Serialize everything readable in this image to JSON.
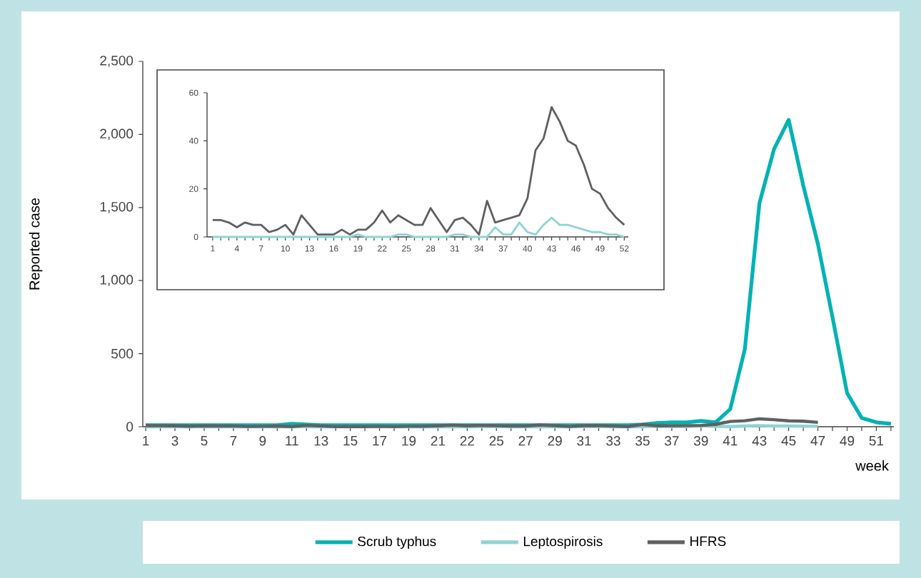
{
  "chart_data": [
    {
      "type": "line",
      "ylabel": "Reported case",
      "xlabel": "week",
      "legend": "bottom",
      "categories": [
        "1",
        null,
        "3",
        null,
        "5",
        null,
        "7",
        null,
        "9",
        null,
        "11",
        null,
        "13",
        null,
        "15",
        null,
        "17",
        null,
        "19",
        null,
        "21",
        null,
        "22",
        null,
        "25",
        null,
        "27",
        null,
        "29",
        null,
        "31",
        null,
        "33",
        null,
        "35",
        null,
        "37",
        null,
        "39",
        null,
        "41",
        null,
        "43",
        null,
        "45",
        null,
        "47",
        null,
        "49",
        null,
        "51",
        null
      ],
      "ylim": [
        0,
        2500
      ],
      "yticks": [
        0,
        500,
        {
          "value": 1000,
          "label": "1,000"
        },
        {
          "value": 1500,
          "label": "1,500"
        },
        {
          "value": 2000,
          "label": "2,000"
        },
        {
          "value": 2500,
          "label": "2,500"
        }
      ],
      "series": [
        {
          "name": "Scrub typhus",
          "color": "#00b2b4",
          "values": [
            10,
            10,
            10,
            10,
            10,
            10,
            10,
            10,
            10,
            10,
            20,
            15,
            10,
            10,
            10,
            10,
            10,
            10,
            10,
            10,
            10,
            10,
            10,
            10,
            10,
            10,
            10,
            10,
            10,
            10,
            10,
            10,
            10,
            10,
            15,
            25,
            30,
            30,
            40,
            30,
            120,
            530,
            1530,
            1900,
            2100,
            1650,
            1250,
            750,
            230,
            60,
            30,
            20
          ]
        },
        {
          "name": "Leptospirosis",
          "color": "#8fd3d6",
          "values": [
            0,
            0,
            0,
            0,
            0,
            0,
            0,
            0,
            0,
            0,
            0,
            0,
            0,
            0,
            0,
            0,
            0,
            0,
            null,
            0,
            0,
            0,
            0,
            1,
            1,
            0,
            0,
            0,
            0,
            0,
            1,
            1,
            0,
            0,
            0,
            4,
            1,
            1,
            6,
            2,
            1,
            5,
            8,
            5,
            5,
            4,
            3,
            null,
            null,
            null,
            null,
            null
          ]
        },
        {
          "name": "HFRS",
          "color": "#5f6062",
          "values": [
            7,
            7,
            6,
            4,
            6,
            5,
            5,
            2,
            3,
            5,
            1,
            9,
            5,
            1,
            1,
            1,
            3,
            1,
            3,
            3,
            6,
            11,
            6,
            9,
            7,
            5,
            5,
            12,
            7,
            2,
            7,
            8,
            5,
            1,
            15,
            6,
            7,
            8,
            9,
            16,
            36,
            41,
            54,
            48,
            40,
            38,
            30,
            null,
            null,
            null,
            null,
            null
          ]
        }
      ]
    },
    {
      "type": "line",
      "categories": [
        "1",
        null,
        null,
        "4",
        null,
        null,
        "7",
        null,
        null,
        "10",
        null,
        null,
        "13",
        null,
        null,
        "16",
        null,
        null,
        "19",
        null,
        null,
        "22",
        null,
        null,
        "25",
        null,
        null,
        "28",
        null,
        null,
        "31",
        null,
        null,
        "34",
        null,
        null,
        "37",
        null,
        null,
        "40",
        null,
        null,
        "43",
        null,
        null,
        "46",
        null,
        null,
        "49",
        null,
        null,
        "52"
      ],
      "ylim": [
        0,
        60
      ],
      "yticks": [
        0,
        20,
        40,
        60
      ],
      "series": [
        {
          "color": "#8fd3d6",
          "values": [
            0,
            0,
            0,
            0,
            0,
            0,
            0,
            0,
            0,
            0,
            0,
            0,
            0,
            0,
            0,
            0,
            0,
            0,
            1,
            0,
            0,
            0,
            0,
            1,
            1,
            0,
            0,
            0,
            0,
            0,
            1,
            1,
            0,
            0,
            0,
            4,
            1,
            1,
            6,
            2,
            1,
            5,
            8,
            5,
            5,
            4,
            3,
            2,
            2,
            1,
            1,
            0
          ]
        },
        {
          "color": "#5f6062",
          "values": [
            7,
            7,
            6,
            4,
            6,
            5,
            5,
            2,
            3,
            5,
            1,
            9,
            5,
            1,
            1,
            1,
            3,
            1,
            3,
            3,
            6,
            11,
            6,
            9,
            7,
            5,
            5,
            12,
            7,
            2,
            7,
            8,
            5,
            1,
            15,
            6,
            7,
            8,
            9,
            16,
            36,
            41,
            54,
            48,
            40,
            38,
            30,
            20,
            18,
            12,
            8,
            5
          ]
        }
      ]
    }
  ]
}
